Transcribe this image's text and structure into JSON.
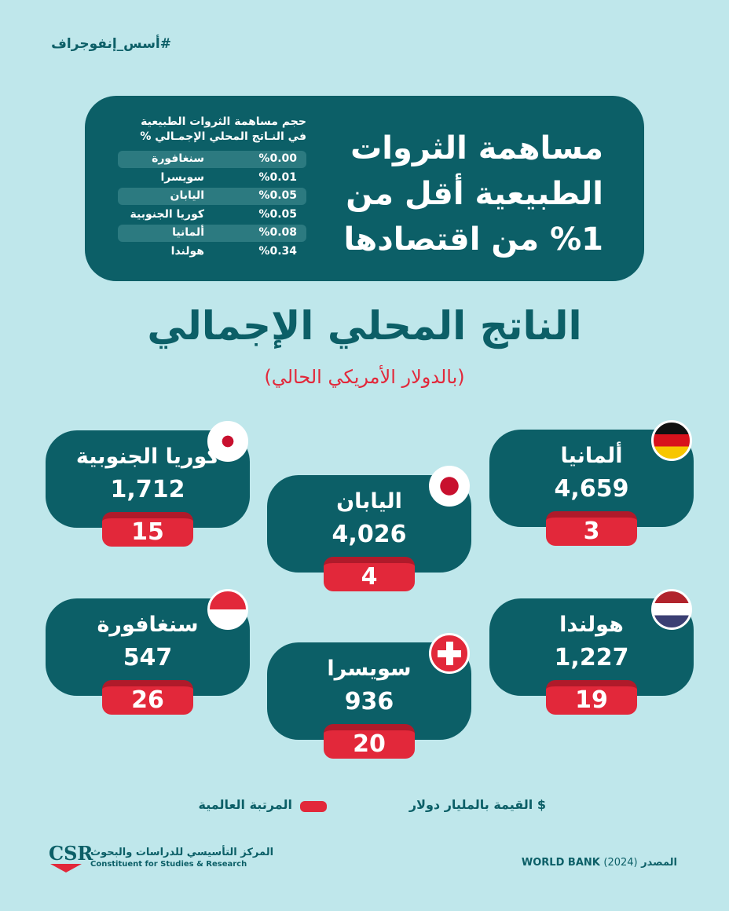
{
  "hashtag": "#أسس_إنفوجراف",
  "headline": {
    "lines": [
      "مساهمة الثروات",
      "الطبيعية أقل من",
      "%1 من اقتصادها"
    ],
    "table": {
      "header": [
        "حجم مساهمة الثروات الطبيعية",
        "في النـاتج المحلي الإجمـالي %"
      ],
      "rows": [
        [
          "سنغافورة",
          "%0.00"
        ],
        [
          "سويسرا",
          "%0.01"
        ],
        [
          "اليابان",
          "%0.05"
        ],
        [
          "كوريا الجنوبية",
          "%0.05"
        ],
        [
          "ألمانيا",
          "%0.08"
        ],
        [
          "هولندا",
          "%0.34"
        ]
      ]
    }
  },
  "title": "الناتج المحلي الإجمالي",
  "subtitle": "(بالدولار الأمريكي الحالي)",
  "cards": [
    {
      "country": "ألمانيا",
      "gdp": "4,659",
      "rank": "3"
    },
    {
      "country": "اليابان",
      "gdp": "4,026",
      "rank": "4"
    },
    {
      "country": "كوريا الجنوبية",
      "gdp": "1,712",
      "rank": "15"
    },
    {
      "country": "هولندا",
      "gdp": "1,227",
      "rank": "19"
    },
    {
      "country": "سويسرا",
      "gdp": "936",
      "rank": "20"
    },
    {
      "country": "سنغافورة",
      "gdp": "547",
      "rank": "26"
    }
  ],
  "legend": {
    "value": "القيمة بالمليار دولار",
    "value_icon": "$",
    "rank": "المرتبة العالمية"
  },
  "footer": {
    "logo": "CSR",
    "org_ar": "المركز التأسيسي للدراسات والبحوث",
    "org_en": "Constituent for Studies & Research",
    "source_label": "المصدر",
    "source": "WORLD BANK",
    "year": "(2024)"
  }
}
